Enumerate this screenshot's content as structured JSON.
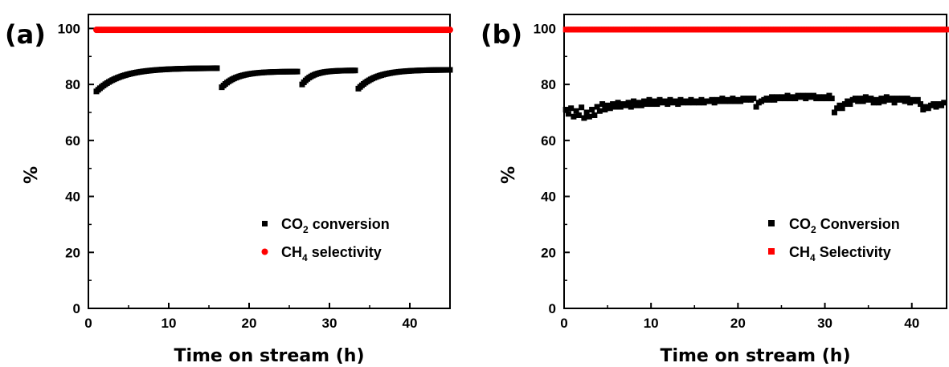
{
  "chart_data": [
    {
      "panel_label": "(a)",
      "type": "scatter",
      "xlabel": "Time on stream (h)",
      "ylabel": "%",
      "xlim": [
        0,
        45
      ],
      "ylim": [
        0,
        105
      ],
      "xticks": [
        0,
        10,
        20,
        30,
        40
      ],
      "yticks": [
        0,
        20,
        40,
        60,
        80,
        100
      ],
      "legend_position": "bottom-right",
      "series": [
        {
          "name": "CO2 conversion",
          "legend_main": "CO",
          "legend_sub": "2",
          "legend_rest": " conversion",
          "marker": "square",
          "color": "#000000",
          "segments": [
            {
              "x_start": 1.0,
              "x_end": 16.0,
              "y_start": 77.5,
              "y_end": 85.8
            },
            {
              "x_start": 16.6,
              "x_end": 26.0,
              "y_start": 79.0,
              "y_end": 84.6
            },
            {
              "x_start": 26.6,
              "x_end": 33.2,
              "y_start": 80.0,
              "y_end": 85.0
            },
            {
              "x_start": 33.6,
              "x_end": 45.0,
              "y_start": 78.5,
              "y_end": 85.2
            }
          ]
        },
        {
          "name": "CH4 selectivity",
          "legend_main": "CH",
          "legend_sub": "4",
          "legend_rest": " selectivity",
          "marker": "circle",
          "color": "#ff0000",
          "x_range": [
            1.0,
            45.0
          ],
          "y": 99.5
        }
      ]
    },
    {
      "panel_label": "(b)",
      "type": "scatter",
      "xlabel": "Time on stream (h)",
      "ylabel": "%",
      "xlim": [
        0,
        44
      ],
      "ylim": [
        0,
        105
      ],
      "xticks": [
        0,
        10,
        20,
        30,
        40
      ],
      "yticks": [
        0,
        20,
        40,
        60,
        80,
        100
      ],
      "legend_position": "bottom-right",
      "series": [
        {
          "name": "CO2 Conversion",
          "legend_main": "CO",
          "legend_sub": "2",
          "legend_rest": " Conversion",
          "marker": "square",
          "color": "#000000",
          "points": [
            [
              0.2,
              71
            ],
            [
              0.5,
              69.5
            ],
            [
              0.8,
              71.5
            ],
            [
              1.1,
              68.5
            ],
            [
              1.4,
              70.5
            ],
            [
              1.7,
              69
            ],
            [
              2.0,
              71.8
            ],
            [
              2.3,
              68
            ],
            [
              2.6,
              70
            ],
            [
              2.9,
              68.5
            ],
            [
              3.2,
              71
            ],
            [
              3.5,
              69
            ],
            [
              3.8,
              72
            ],
            [
              4.1,
              70.5
            ],
            [
              4.4,
              73
            ],
            [
              4.7,
              71
            ],
            [
              5.0,
              72.5
            ],
            [
              5.3,
              71.5
            ],
            [
              5.6,
              73
            ],
            [
              5.9,
              72
            ],
            [
              6.2,
              73.5
            ],
            [
              6.5,
              72
            ],
            [
              6.8,
              73
            ],
            [
              7.1,
              72.5
            ],
            [
              7.4,
              73.5
            ],
            [
              7.7,
              72
            ],
            [
              8.0,
              74
            ],
            [
              8.3,
              72.5
            ],
            [
              8.6,
              73.5
            ],
            [
              8.9,
              72.5
            ],
            [
              9.2,
              74
            ],
            [
              9.5,
              73
            ],
            [
              9.8,
              74.5
            ],
            [
              10.1,
              73
            ],
            [
              10.4,
              74
            ],
            [
              10.7,
              73
            ],
            [
              11.0,
              74.5
            ],
            [
              11.3,
              73.5
            ],
            [
              11.6,
              74
            ],
            [
              11.9,
              73
            ],
            [
              12.2,
              74.5
            ],
            [
              12.5,
              73.5
            ],
            [
              12.8,
              74
            ],
            [
              13.1,
              73
            ],
            [
              13.4,
              74.5
            ],
            [
              13.7,
              73.5
            ],
            [
              14.0,
              74
            ],
            [
              14.3,
              73.5
            ],
            [
              14.6,
              74.5
            ],
            [
              14.9,
              73.5
            ],
            [
              15.2,
              74
            ],
            [
              15.5,
              73.5
            ],
            [
              15.8,
              74.5
            ],
            [
              16.1,
              73.5
            ],
            [
              16.4,
              74
            ],
            [
              16.7,
              74
            ],
            [
              17.0,
              74.5
            ],
            [
              17.3,
              73.5
            ],
            [
              17.6,
              74.5
            ],
            [
              17.9,
              74
            ],
            [
              18.2,
              75
            ],
            [
              18.5,
              74
            ],
            [
              18.8,
              74.5
            ],
            [
              19.1,
              74
            ],
            [
              19.4,
              75
            ],
            [
              19.7,
              74
            ],
            [
              20.0,
              74.5
            ],
            [
              20.3,
              74
            ],
            [
              20.6,
              75
            ],
            [
              20.9,
              74.5
            ],
            [
              21.2,
              75
            ],
            [
              21.5,
              74.5
            ],
            [
              21.8,
              75
            ],
            [
              22.1,
              72
            ],
            [
              22.4,
              73.5
            ],
            [
              22.7,
              74
            ],
            [
              23.0,
              74.5
            ],
            [
              23.3,
              75
            ],
            [
              23.6,
              74.5
            ],
            [
              23.9,
              75.5
            ],
            [
              24.2,
              74.5
            ],
            [
              24.5,
              75.5
            ],
            [
              24.8,
              75
            ],
            [
              25.1,
              75.5
            ],
            [
              25.4,
              75
            ],
            [
              25.7,
              76
            ],
            [
              26.0,
              75
            ],
            [
              26.3,
              75.5
            ],
            [
              26.6,
              75
            ],
            [
              26.9,
              76
            ],
            [
              27.2,
              75.5
            ],
            [
              27.5,
              76
            ],
            [
              27.8,
              75
            ],
            [
              28.1,
              76
            ],
            [
              28.4,
              75.5
            ],
            [
              28.7,
              76
            ],
            [
              29.0,
              75
            ],
            [
              29.3,
              75.5
            ],
            [
              29.6,
              75
            ],
            [
              29.9,
              75.5
            ],
            [
              30.2,
              75
            ],
            [
              30.5,
              76
            ],
            [
              30.8,
              75
            ],
            [
              31.1,
              70
            ],
            [
              31.4,
              71.5
            ],
            [
              31.7,
              72.5
            ],
            [
              32.0,
              71.5
            ],
            [
              32.3,
              73
            ],
            [
              32.6,
              74
            ],
            [
              32.9,
              73
            ],
            [
              33.2,
              74.5
            ],
            [
              33.5,
              75
            ],
            [
              33.8,
              74
            ],
            [
              34.1,
              75
            ],
            [
              34.4,
              74
            ],
            [
              34.7,
              75.5
            ],
            [
              35.0,
              74.5
            ],
            [
              35.3,
              75
            ],
            [
              35.6,
              73.5
            ],
            [
              35.9,
              74.5
            ],
            [
              36.2,
              73.5
            ],
            [
              36.5,
              75
            ],
            [
              36.8,
              74
            ],
            [
              37.1,
              75.5
            ],
            [
              37.4,
              74.5
            ],
            [
              37.7,
              75
            ],
            [
              38.0,
              73.5
            ],
            [
              38.3,
              75
            ],
            [
              38.6,
              74.5
            ],
            [
              38.9,
              75
            ],
            [
              39.2,
              74
            ],
            [
              39.5,
              75
            ],
            [
              39.8,
              73.5
            ],
            [
              40.1,
              74.5
            ],
            [
              40.4,
              74
            ],
            [
              40.7,
              74.5
            ],
            [
              41.0,
              73
            ],
            [
              41.3,
              71
            ],
            [
              41.6,
              72
            ],
            [
              41.9,
              71.5
            ],
            [
              42.2,
              72.5
            ],
            [
              42.5,
              73
            ],
            [
              42.8,
              72
            ],
            [
              43.1,
              73
            ],
            [
              43.4,
              72.5
            ],
            [
              43.7,
              73.5
            ]
          ]
        },
        {
          "name": "CH4 Selectivity",
          "legend_main": "CH",
          "legend_sub": "4",
          "legend_rest": " Selectivity",
          "marker": "square",
          "color": "#ff0000",
          "x_range": [
            0.2,
            44.0
          ],
          "y": 99.6
        }
      ]
    }
  ]
}
